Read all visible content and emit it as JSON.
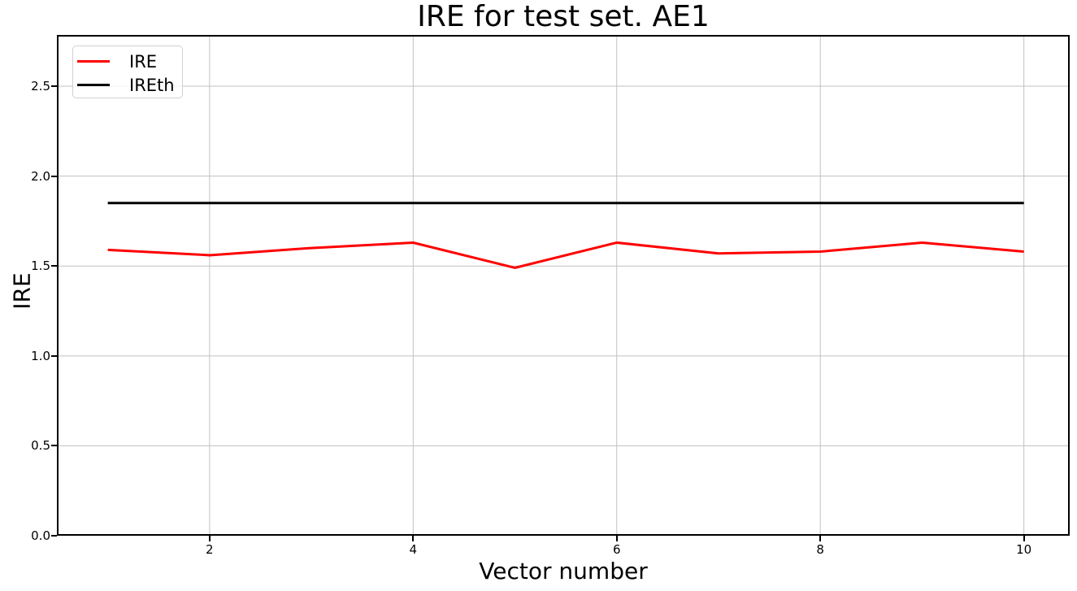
{
  "chart_data": {
    "type": "line",
    "title": "IRE for test set. AE1",
    "xlabel": "Vector number",
    "ylabel": "IRE",
    "x": [
      1,
      2,
      3,
      4,
      5,
      6,
      7,
      8,
      9,
      10
    ],
    "series": [
      {
        "name": "IRE",
        "color": "#ff0000",
        "linewidth": 3,
        "values": [
          1.59,
          1.56,
          1.6,
          1.63,
          1.49,
          1.63,
          1.57,
          1.58,
          1.63,
          1.58
        ]
      },
      {
        "name": "IREth",
        "color": "#000000",
        "linewidth": 3,
        "values": [
          1.85,
          1.85,
          1.85,
          1.85,
          1.85,
          1.85,
          1.85,
          1.85,
          1.85,
          1.85
        ]
      }
    ],
    "xlim": [
      0.5,
      10.45
    ],
    "ylim": [
      0,
      2.785
    ],
    "xticks": [
      2,
      4,
      6,
      8,
      10
    ],
    "xtick_labels": [
      "2",
      "4",
      "6",
      "8",
      "10"
    ],
    "yticks": [
      0.0,
      0.5,
      1.0,
      1.5,
      2.0,
      2.5
    ],
    "ytick_labels": [
      "0.0",
      "0.5",
      "1.0",
      "1.5",
      "2.0",
      "2.5"
    ],
    "grid": true,
    "grid_color": "#c0c0c0",
    "spine_color": "#000000",
    "legend_position": "upper left",
    "legend_entries": [
      "IRE",
      "IREth"
    ]
  }
}
